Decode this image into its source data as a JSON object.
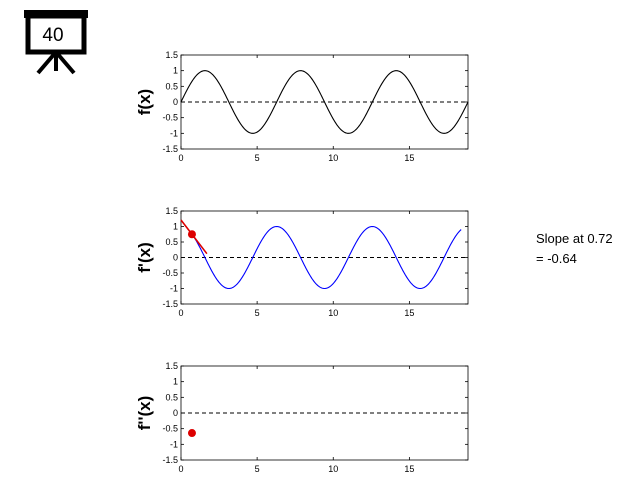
{
  "badge": {
    "icon": "projector-screen-icon",
    "label": "40"
  },
  "annotation": {
    "line1": "Slope at 0.72",
    "line2": "= -0.64"
  },
  "colors": {
    "f": "#000000",
    "df": "#0000ff",
    "marker": "#dd0000",
    "tangent": "#dd0000"
  },
  "chart_data": [
    {
      "type": "line",
      "ylabel": "f(x)",
      "function": "sin(x)",
      "color": "#000000",
      "x_range": [
        0,
        18.85
      ],
      "xlim": [
        0,
        18.85
      ],
      "ylim": [
        -1.5,
        1.5
      ],
      "xticks": [
        0,
        5,
        10,
        15
      ],
      "xtick_labels": [
        "0",
        "5",
        "10",
        "15"
      ],
      "yticks": [
        1.5,
        1,
        0.5,
        0,
        -0.5,
        -1,
        -1.5
      ],
      "ytick_labels": [
        "1.5",
        "1",
        "0.5",
        "0",
        "-0.5",
        "-1",
        "-1.5"
      ],
      "zero_line": "dashed"
    },
    {
      "type": "line",
      "ylabel": "f'(x)",
      "function": "cos(x)",
      "color": "#0000ff",
      "x_range": [
        0.72,
        18.4
      ],
      "xlim": [
        0,
        18.85
      ],
      "ylim": [
        -1.5,
        1.5
      ],
      "xticks": [
        0,
        5,
        10,
        15
      ],
      "xtick_labels": [
        "0",
        "5",
        "10",
        "15"
      ],
      "yticks": [
        1.5,
        1,
        0.5,
        0,
        -0.5,
        -1,
        -1.5
      ],
      "ytick_labels": [
        "1.5",
        "1",
        "0.5",
        "0",
        "-0.5",
        "-1",
        "-1.5"
      ],
      "zero_line": "dashed",
      "marker": {
        "x": 0.72,
        "y": 0.75
      },
      "tangent": {
        "x_from": 0,
        "x_to": 1.7,
        "slope": -0.64,
        "through": [
          0.72,
          0.75
        ]
      }
    },
    {
      "type": "scatter",
      "ylabel": "f''(x)",
      "xlim": [
        0,
        18.85
      ],
      "ylim": [
        -1.5,
        1.5
      ],
      "xticks": [
        0,
        5,
        10,
        15
      ],
      "xtick_labels": [
        "0",
        "5",
        "10",
        "15"
      ],
      "yticks": [
        1.5,
        1,
        0.5,
        0,
        -0.5,
        -1,
        -1.5
      ],
      "ytick_labels": [
        "1.5",
        "1",
        "0.5",
        "0",
        "-0.5",
        "-1",
        "-1.5"
      ],
      "zero_line": "dashed",
      "points": [
        {
          "x": 0.72,
          "y": -0.64
        }
      ]
    }
  ]
}
